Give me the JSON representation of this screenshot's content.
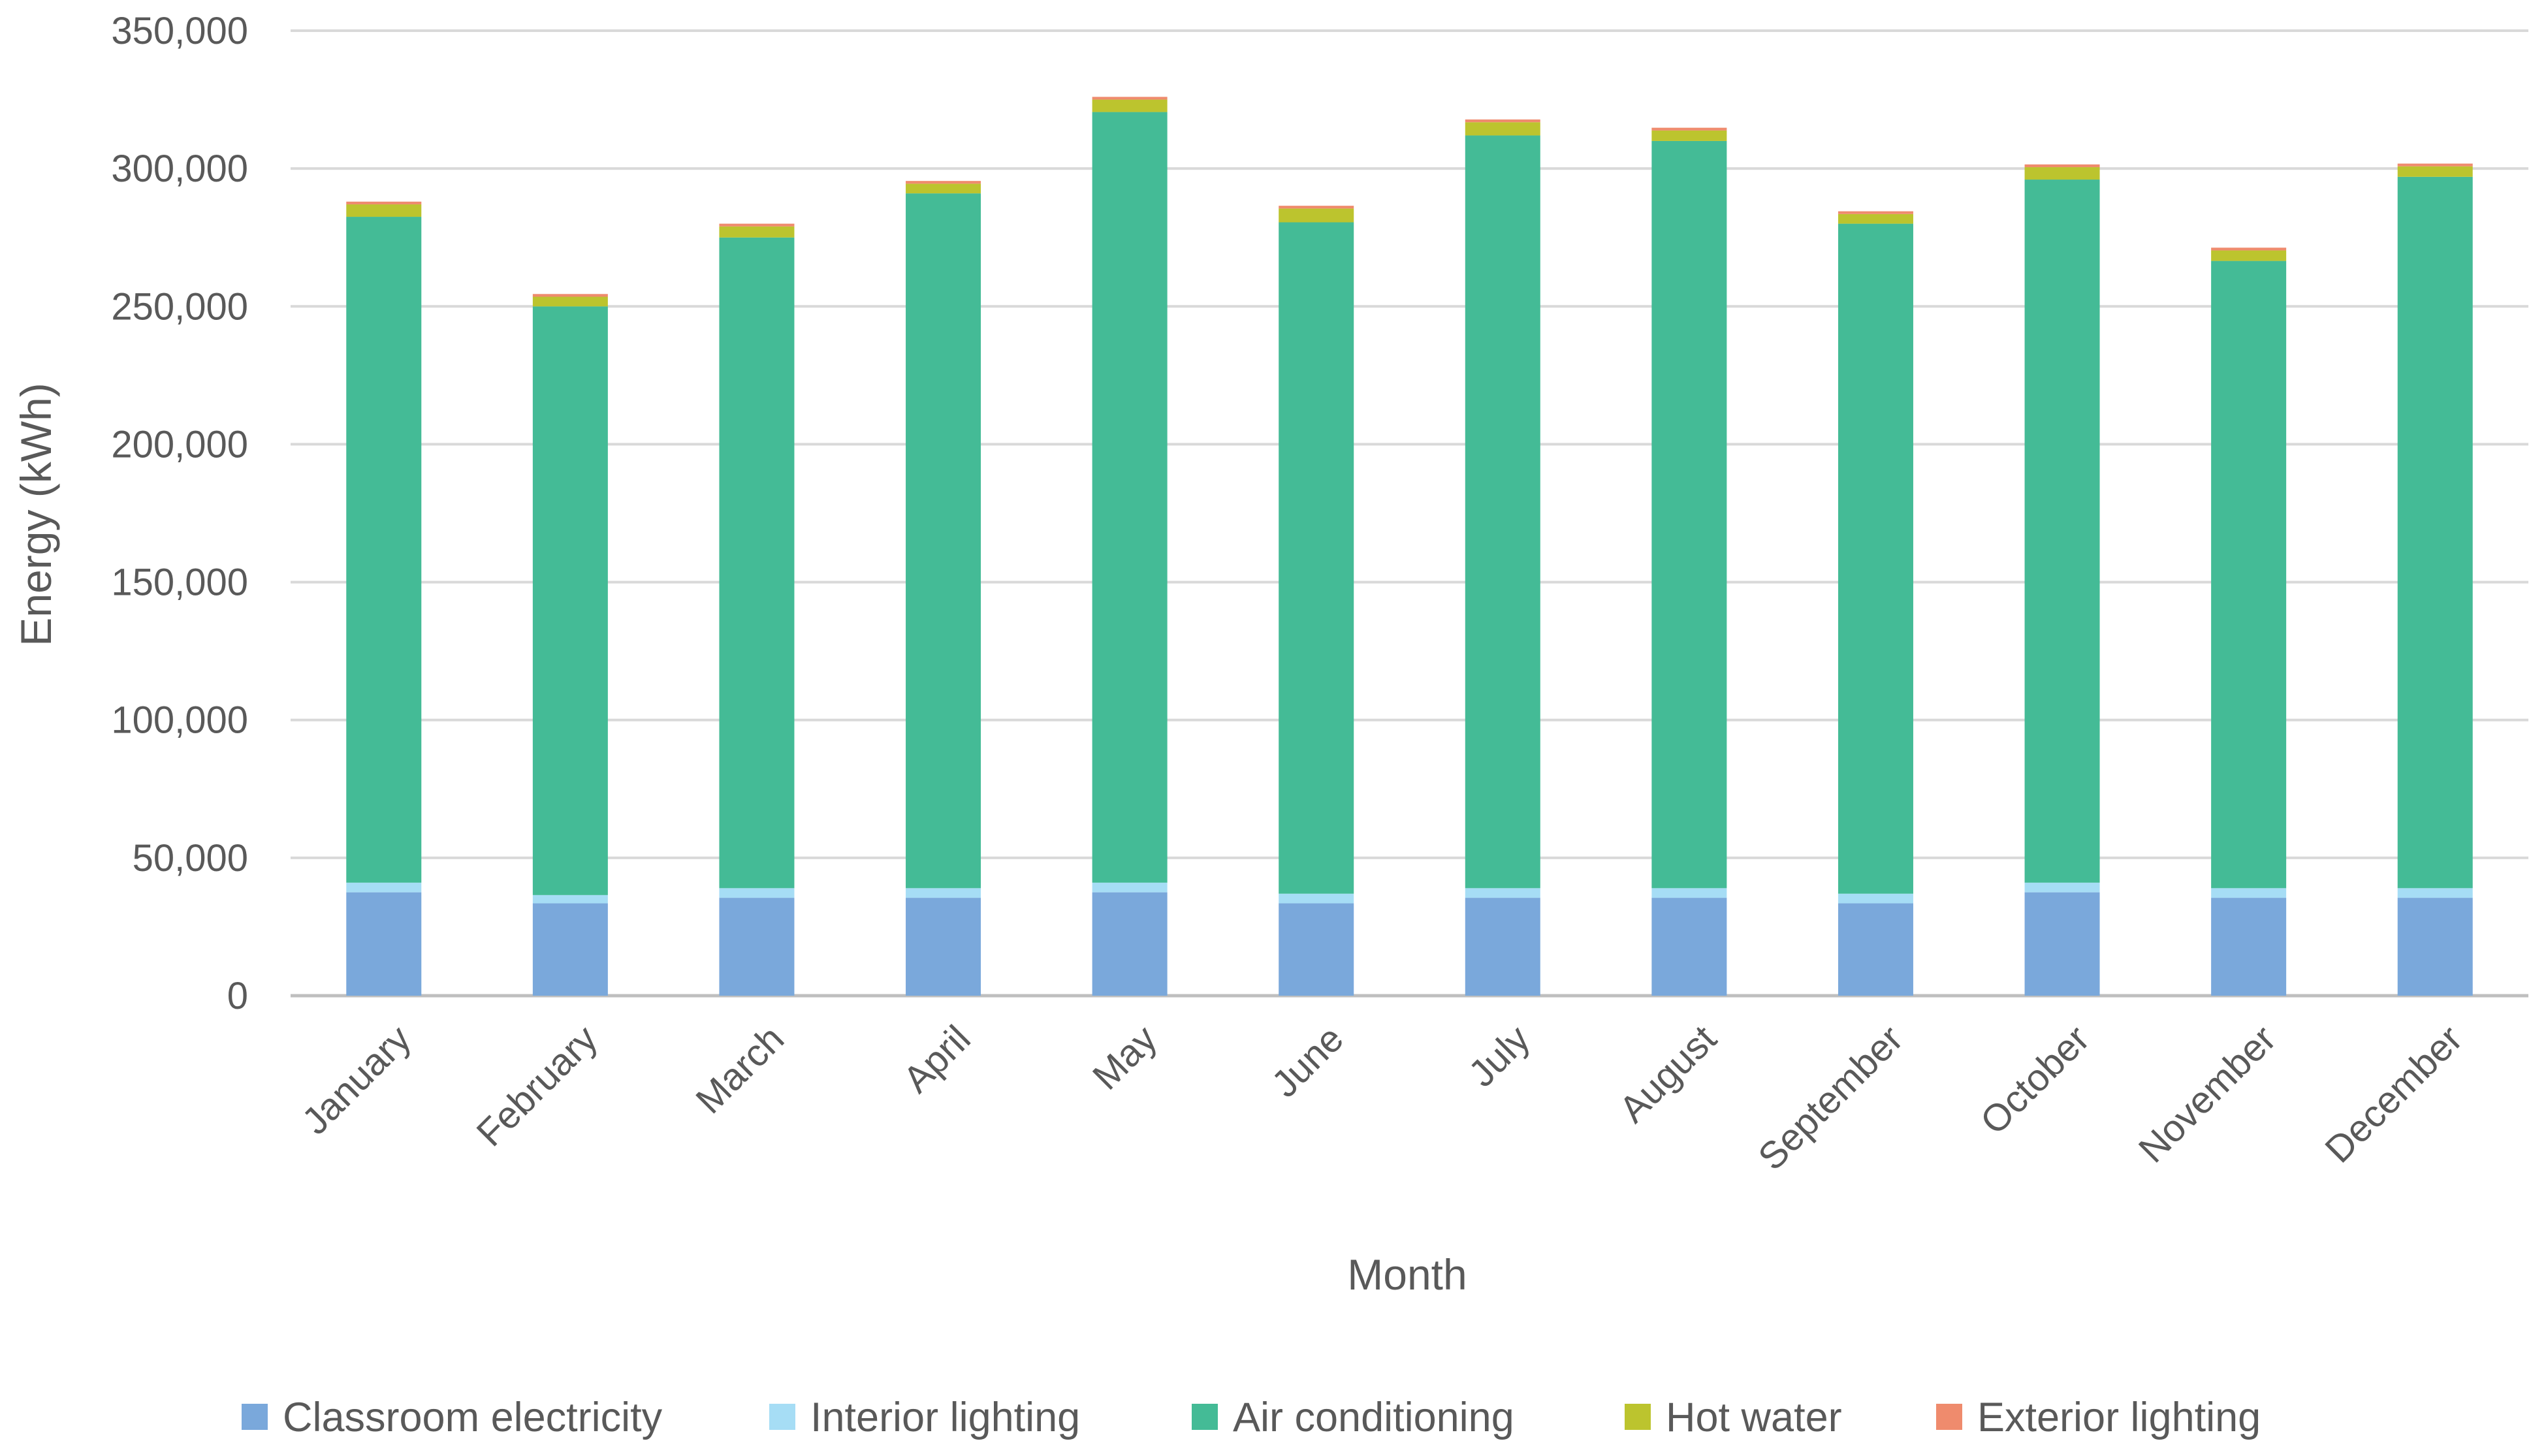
{
  "chart_data": {
    "type": "bar",
    "stacked": true,
    "title": "",
    "xlabel": "Month",
    "ylabel": "Energy (kWh)",
    "ylim": [
      0,
      350000
    ],
    "yticks": [
      0,
      50000,
      100000,
      150000,
      200000,
      250000,
      300000,
      350000
    ],
    "ytick_labels": [
      "0",
      "50,000",
      "100,000",
      "150,000",
      "200,000",
      "250,000",
      "300,000",
      "350,000"
    ],
    "grid": true,
    "legend_position": "bottom",
    "categories": [
      "January",
      "February",
      "March",
      "April",
      "May",
      "June",
      "July",
      "August",
      "September",
      "October",
      "November",
      "December"
    ],
    "series": [
      {
        "name": "Classroom electricity",
        "color": "#7aa8db",
        "values": [
          37500,
          33500,
          35500,
          35500,
          37500,
          33500,
          35500,
          35500,
          33500,
          37500,
          35500,
          35500
        ]
      },
      {
        "name": "Interior lighting",
        "color": "#a6ddf5",
        "values": [
          3500,
          3000,
          3500,
          3500,
          3500,
          3500,
          3500,
          3500,
          3500,
          3500,
          3500,
          3500
        ]
      },
      {
        "name": "Air conditioning",
        "color": "#44bb96",
        "values": [
          241500,
          213500,
          236000,
          252000,
          279500,
          243500,
          273000,
          271000,
          243000,
          255000,
          227500,
          258000
        ]
      },
      {
        "name": "Hot water",
        "color": "#bcc42e",
        "values": [
          4500,
          3500,
          4000,
          3500,
          4500,
          5000,
          4800,
          3800,
          3500,
          4500,
          3800,
          3800
        ]
      },
      {
        "name": "Exterior lighting",
        "color": "#ef8b6d",
        "values": [
          1000,
          1000,
          1000,
          1000,
          1000,
          1000,
          1000,
          1000,
          1000,
          1000,
          1000,
          1000
        ]
      }
    ]
  }
}
